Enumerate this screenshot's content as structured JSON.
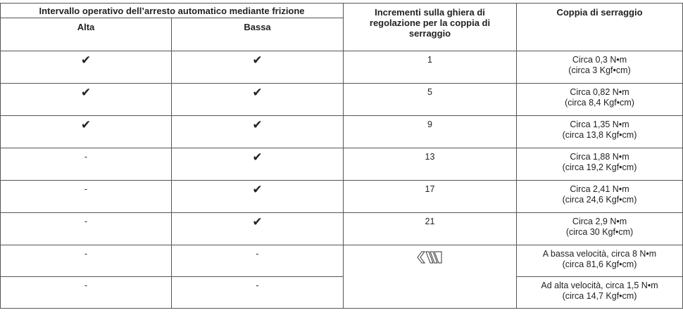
{
  "table": {
    "header": {
      "group": "Intervallo operativo dell’arresto automatico mediante frizione",
      "alta": "Alta",
      "bassa": "Bassa",
      "increment": "Incrementi sulla ghiera di regolazione per la coppia di serraggio",
      "torque": "Coppia di serraggio"
    },
    "rows": [
      {
        "alta": "✔",
        "bassa": "✔",
        "increment": "1",
        "torque": [
          "Circa 0,3 N•m",
          "(circa 3 Kgf•cm)"
        ]
      },
      {
        "alta": "✔",
        "bassa": "✔",
        "increment": "5",
        "torque": [
          "Circa 0,82 N•m",
          "(circa 8,4 Kgf•cm)"
        ]
      },
      {
        "alta": "✔",
        "bassa": "✔",
        "increment": "9",
        "torque": [
          "Circa 1,35 N•m",
          "(circa 13,8 Kgf•cm)"
        ]
      },
      {
        "alta": "-",
        "bassa": "✔",
        "increment": "13",
        "torque": [
          "Circa 1,88 N•m",
          "(circa 19,2 Kgf•cm)"
        ]
      },
      {
        "alta": "-",
        "bassa": "✔",
        "increment": "17",
        "torque": [
          "Circa 2,41 N•m",
          "(circa 24,6 Kgf•cm)"
        ]
      },
      {
        "alta": "-",
        "bassa": "✔",
        "increment": "21",
        "torque": [
          "Circa 2,9 N•m",
          "(circa 30 Kgf•cm)"
        ]
      },
      {
        "alta": "-",
        "bassa": "-",
        "torque": [
          "A bassa velocità, circa 8 N•m",
          "(circa 81,6 Kgf•cm)"
        ]
      },
      {
        "alta": "-",
        "bassa": "-",
        "torque": [
          "Ad alta velocità, circa 1,5 N•m",
          "(circa 14,7 Kgf•cm)"
        ]
      }
    ]
  }
}
